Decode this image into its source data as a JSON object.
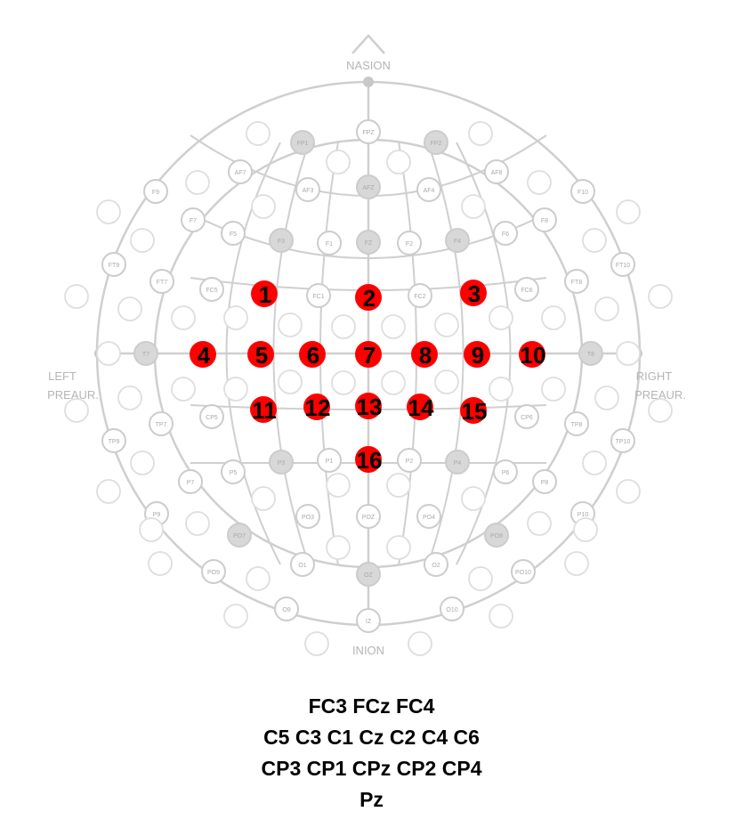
{
  "head_labels": {
    "top": "NASION",
    "bottom": "INION",
    "left": [
      "LEFT",
      "PREAUR."
    ],
    "right": [
      "RIGHT",
      "PREAUR."
    ]
  },
  "colors": {
    "line": "#cfcfcf",
    "ghost_electrode_fill": "#ffffff",
    "ghost_electrode_stroke": "#cccccc",
    "standard_electrode_fill": "#d8d8d8",
    "ghost_label": "#a9a9a9",
    "selected": "#ff0000",
    "number": "#000000"
  },
  "selected_electrodes": [
    "1",
    "2",
    "3",
    "4",
    "5",
    "6",
    "7",
    "8",
    "9",
    "10",
    "11",
    "12",
    "13",
    "14",
    "15",
    "16"
  ],
  "ghost_labels": [
    "FP1",
    "FPZ",
    "FP2",
    "AF7",
    "AF3",
    "AFZ",
    "AF4",
    "AF8",
    "F9",
    "F7",
    "F5",
    "F3",
    "F1",
    "FZ",
    "F2",
    "F4",
    "F6",
    "F8",
    "F10",
    "FT9",
    "FT7",
    "FC5",
    "FC1",
    "FC2",
    "FC6",
    "FT8",
    "FT10",
    "T7",
    "T8",
    "TP7",
    "CP5",
    "CP6",
    "TP8",
    "TP9",
    "TP10",
    "P9",
    "P7",
    "P5",
    "P3",
    "P1",
    "P2",
    "P4",
    "P6",
    "P8",
    "P10",
    "PO7",
    "PO3",
    "POZ",
    "PO4",
    "PO8",
    "PO9",
    "O1",
    "OZ",
    "O2",
    "PO10",
    "O9",
    "IZ",
    "O10"
  ],
  "caption": {
    "line1": "FC3 FCz FC4",
    "line2": "C5 C3 C1 Cz C2 C4 C6",
    "line3": "CP3 CP1 CPz CP2 CP4",
    "line4": "Pz"
  }
}
